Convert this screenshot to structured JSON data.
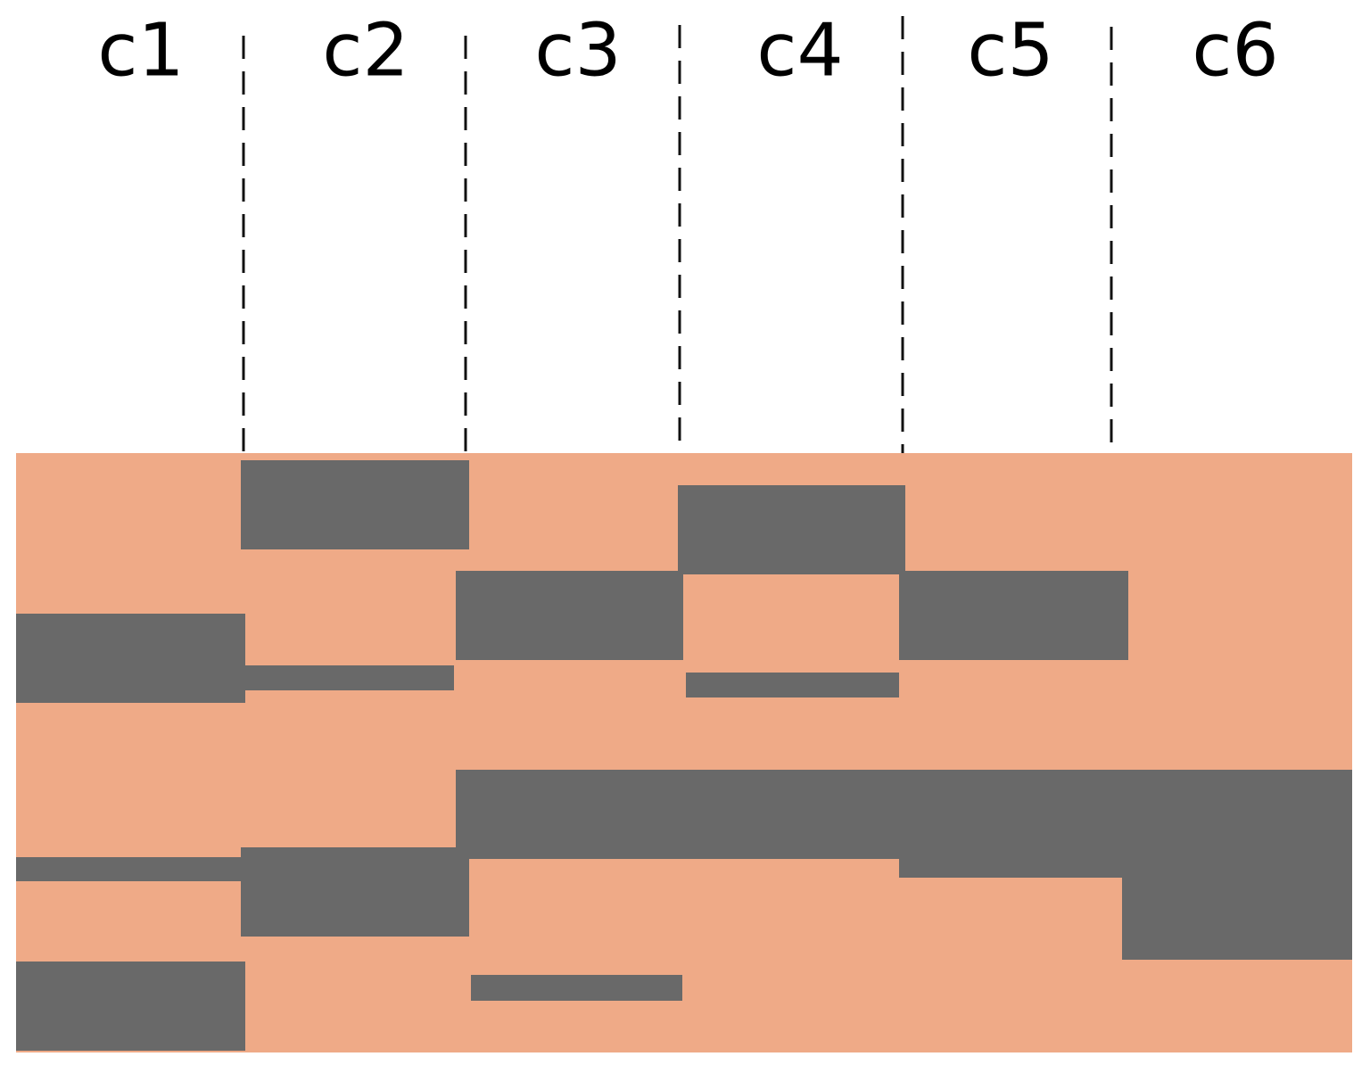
{
  "columns": [
    "c1",
    "c2",
    "c3",
    "c4",
    "c5",
    "c6"
  ]
}
